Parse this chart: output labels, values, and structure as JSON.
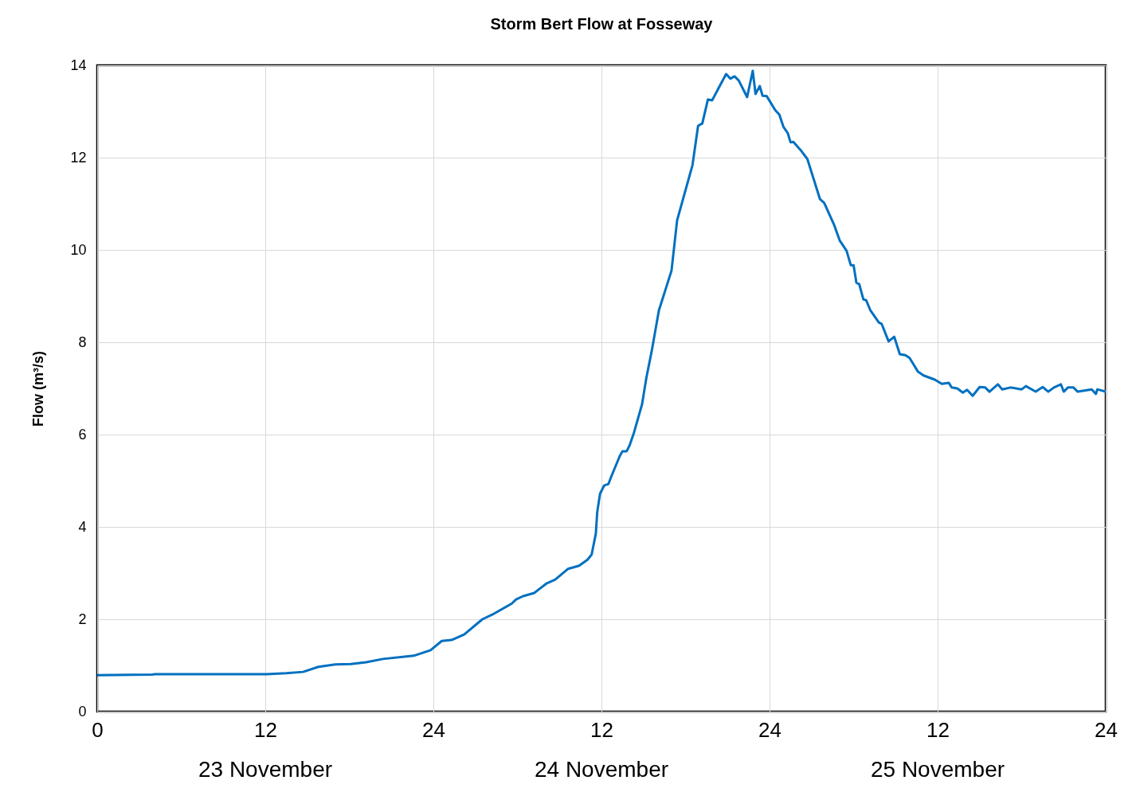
{
  "chart_data": {
    "type": "line",
    "title": "Storm Bert Flow at Fosseway",
    "ylabel": "Flow (m³/s)",
    "annotations": [
      "23 November",
      "24 November",
      "25 November"
    ],
    "xlim": [
      "--11-23T00:00",
      "--11-26T00:00"
    ],
    "xticks": [
      {
        "value": "--11-23T00:00",
        "label": "0"
      },
      {
        "value": "--11-23T12:00",
        "label": "12"
      },
      {
        "value": "--11-24T00:00",
        "label": "24"
      },
      {
        "value": "--11-24T12:00",
        "label": "12"
      },
      {
        "value": "--11-25T00:00",
        "label": "24"
      },
      {
        "value": "--11-25T12:00",
        "label": "12"
      },
      {
        "value": "--11-26T00:00",
        "label": "24"
      }
    ],
    "ylim": [
      0,
      14
    ],
    "yticks": [
      0,
      2,
      4,
      6,
      8,
      10,
      12,
      14
    ],
    "grid": true,
    "marker": "none",
    "line_style": "solid",
    "x": [
      "--11-23T00:00",
      "--11-23T03:54",
      "--11-23T04:09",
      "--11-23T07:18",
      "--11-23T12:06",
      "--11-23T13:30",
      "--11-23T14:42",
      "--11-23T15:48",
      "--11-23T17:00",
      "--11-23T18:06",
      "--11-23T19:12",
      "--11-23T20:24",
      "--11-23T22:36",
      "--11-23T23:48",
      "--11-24T00:36",
      "--11-24T01:18",
      "--11-24T02:12",
      "--11-24T03:30",
      "--11-24T04:12",
      "--11-24T05:36",
      "--11-24T05:54",
      "--11-24T06:24",
      "--11-24T07:12",
      "--11-24T07:30",
      "--11-24T08:06",
      "--11-24T08:42",
      "--11-24T09:36",
      "--11-24T10:24",
      "--11-24T11:00",
      "--11-24T11:18",
      "--11-24T11:36",
      "--11-24T11:42",
      "--11-24T11:54",
      "--11-24T12:12",
      "--11-24T12:30",
      "--11-24T12:42",
      "--11-24T13:18",
      "--11-24T13:30",
      "--11-24T13:48",
      "--11-24T14:00",
      "--11-24T14:18",
      "--11-24T14:54",
      "--11-24T15:12",
      "--11-24T15:36",
      "--11-24T15:42",
      "--11-24T16:06",
      "--11-24T17:00",
      "--11-24T17:24",
      "--11-24T18:30",
      "--11-24T18:54",
      "--11-24T19:12",
      "--11-24T19:36",
      "--11-24T19:54",
      "--11-24T20:18",
      "--11-24T20:54",
      "--11-24T21:12",
      "--11-24T21:30",
      "--11-24T21:48",
      "--11-24T22:24",
      "--11-24T22:48",
      "--11-24T23:00",
      "--11-24T23:18",
      "--11-24T23:30",
      "--11-24T23:48",
      "--11-25T00:24",
      "--11-25T00:42",
      "--11-25T01:00",
      "--11-25T01:18",
      "--11-25T01:30",
      "--11-25T01:42",
      "--11-25T02:12",
      "--11-25T02:42",
      "--11-25T03:36",
      "--11-25T03:54",
      "--11-25T04:36",
      "--11-25T05:00",
      "--11-25T05:30",
      "--11-25T05:48",
      "--11-25T06:00",
      "--11-25T06:12",
      "--11-25T06:24",
      "--11-25T06:42",
      "--11-25T06:54",
      "--11-25T07:12",
      "--11-25T07:48",
      "--11-25T08:00",
      "--11-25T08:30",
      "--11-25T08:54",
      "--11-25T09:18",
      "--11-25T09:42",
      "--11-25T10:00",
      "--11-25T10:36",
      "--11-25T11:00",
      "--11-25T11:48",
      "--11-25T12:18",
      "--11-25T12:48",
      "--11-25T13:00",
      "--11-25T13:24",
      "--11-25T13:48",
      "--11-25T14:06",
      "--11-25T14:30",
      "--11-25T15:00",
      "--11-25T15:24",
      "--11-25T15:42",
      "--11-25T16:18",
      "--11-25T16:36",
      "--11-25T17:12",
      "--11-25T18:00",
      "--11-25T18:18",
      "--11-25T19:00",
      "--11-25T19:30",
      "--11-25T19:54",
      "--11-25T20:18",
      "--11-25T20:48",
      "--11-25T21:00",
      "--11-25T21:18",
      "--11-25T21:42",
      "--11-25T22:00",
      "--11-25T23:00",
      "--11-25T23:18",
      "--11-25T23:24",
      "--11-26T00:00"
    ],
    "series": [
      {
        "color": "#0070c0",
        "values": [
          0.79,
          0.8,
          0.81,
          0.81,
          0.81,
          0.83,
          0.86,
          0.97,
          1.02,
          1.03,
          1.07,
          1.14,
          1.21,
          1.33,
          1.53,
          1.55,
          1.67,
          2.0,
          2.1,
          2.34,
          2.43,
          2.5,
          2.57,
          2.64,
          2.78,
          2.86,
          3.09,
          3.16,
          3.29,
          3.4,
          3.86,
          4.33,
          4.72,
          4.9,
          4.93,
          5.09,
          5.53,
          5.64,
          5.64,
          5.76,
          6.02,
          6.66,
          7.22,
          7.83,
          8.0,
          8.69,
          9.55,
          10.64,
          11.84,
          12.69,
          12.74,
          13.26,
          13.24,
          13.47,
          13.81,
          13.71,
          13.76,
          13.67,
          13.31,
          13.88,
          13.38,
          13.55,
          13.34,
          13.33,
          13.03,
          12.93,
          12.66,
          12.53,
          12.33,
          12.34,
          12.17,
          11.97,
          11.1,
          11.02,
          10.55,
          10.21,
          9.98,
          9.67,
          9.67,
          9.29,
          9.26,
          8.93,
          8.91,
          8.69,
          8.43,
          8.4,
          8.02,
          8.12,
          7.74,
          7.72,
          7.66,
          7.36,
          7.28,
          7.19,
          7.1,
          7.12,
          7.02,
          7.0,
          6.91,
          6.97,
          6.84,
          7.03,
          7.02,
          6.93,
          7.09,
          6.98,
          7.02,
          6.98,
          7.05,
          6.93,
          7.03,
          6.93,
          7.02,
          7.09,
          6.93,
          7.02,
          7.02,
          6.93,
          6.98,
          6.88,
          6.98,
          6.93
        ]
      }
    ]
  }
}
